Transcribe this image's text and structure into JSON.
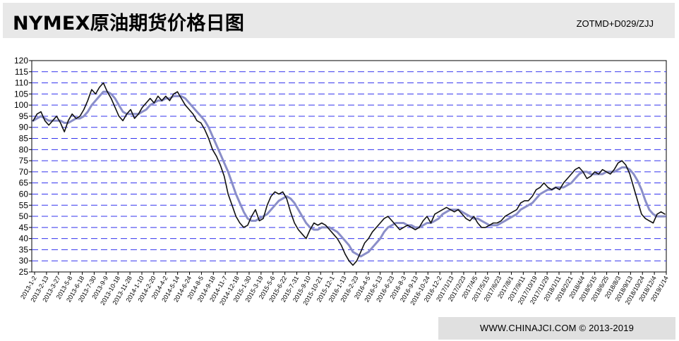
{
  "header": {
    "title": "NYMEX原油期货价格日图",
    "code": "ZOTMD+D029/ZJJ"
  },
  "footer": {
    "copyright": "WWW.CHINAJCI.COM © 2013-2019"
  },
  "colors": {
    "grid": "#3333ee",
    "price_line": "#111111",
    "ma_line": "#8a8ec8",
    "header_bg": "#e8e8e8",
    "footer_bg": "#e0e0e0"
  },
  "chart_data": {
    "type": "line",
    "title": "NYMEX原油期货价格日图",
    "xlabel": "",
    "ylabel": "",
    "ylim": [
      25,
      120
    ],
    "y_ticks": [
      25,
      30,
      35,
      40,
      45,
      50,
      55,
      60,
      65,
      70,
      75,
      80,
      85,
      90,
      95,
      100,
      105,
      110,
      115,
      120
    ],
    "grid": "horizontal dashed",
    "legend": "none",
    "x_tick_labels": [
      "2013-1-2",
      "2013-2-13",
      "2013-3-27",
      "2013-5-8",
      "2013-6-18",
      "2013-7-30",
      "2013-9-9",
      "2013-10-18",
      "2013-11-28",
      "2014-1-10",
      "2014-2-20",
      "2014-4-2",
      "2014-5-14",
      "2014-6-24",
      "2014-8-5",
      "2014-9-18",
      "2014-11-7",
      "2014-12-18",
      "2015-1-30",
      "2015-3-19",
      "2015-5-6",
      "2015-6-22",
      "2015-7-31",
      "2015-9-10",
      "2015-10-21",
      "2015-12-1",
      "2016-1-13",
      "2016-2-23",
      "2016-4-5",
      "2016-5-13",
      "2016-6-23",
      "2016-8-3",
      "2016-9-13",
      "2016-10-24",
      "2016-12-2",
      "2017/1/13",
      "2017/2/23",
      "2017/4/5",
      "2017/5/15",
      "2017/6/23",
      "2017/8/1",
      "2017/9/11",
      "2017/10/19",
      "2017/11/29",
      "2018/1/11",
      "2018/2/21",
      "2018/4/4",
      "2018/5/15",
      "2018/6/25",
      "2018/8/3",
      "2018/9/13",
      "2018/10/24",
      "2018/12/4",
      "2019/1/14"
    ],
    "series": [
      {
        "values": [
          93,
          96,
          97,
          93,
          91,
          93,
          95,
          92,
          88,
          93,
          96,
          94,
          95,
          98,
          102,
          107,
          105,
          108,
          110,
          106,
          103,
          99,
          95,
          93,
          96,
          98,
          94,
          96,
          99,
          101,
          103,
          101,
          104,
          102,
          104,
          102,
          105,
          106,
          103,
          100,
          98,
          96,
          93,
          92,
          89,
          85,
          80,
          77,
          73,
          68,
          60,
          55,
          50,
          47,
          45,
          46,
          50,
          53,
          48,
          49,
          55,
          59,
          61,
          60,
          61,
          58,
          52,
          47,
          44,
          42,
          40,
          44,
          47,
          46,
          47,
          46,
          44,
          42,
          40,
          37,
          33,
          30,
          28,
          30,
          34,
          38,
          40,
          43,
          45,
          47,
          49,
          50,
          48,
          46,
          44,
          45,
          46,
          45,
          44,
          45,
          48,
          50,
          47,
          51,
          52,
          53,
          54,
          53,
          52,
          53,
          51,
          49,
          48,
          50,
          47,
          45,
          45,
          46,
          47,
          47,
          48,
          50,
          51,
          52,
          53,
          56,
          57,
          57,
          59,
          62,
          63,
          65,
          63,
          62,
          63,
          62,
          65,
          67,
          69,
          71,
          72,
          70,
          67,
          68,
          70,
          69,
          71,
          70,
          69,
          71,
          74,
          75,
          73,
          69,
          63,
          57,
          51,
          49,
          48,
          47,
          51,
          52,
          51
        ],
        "ma": [
          93,
          94,
          95,
          94,
          93,
          93,
          93,
          93,
          92,
          92,
          93,
          94,
          94,
          95,
          97,
          100,
          102,
          104,
          106,
          106,
          105,
          103,
          100,
          97,
          96,
          96,
          96,
          96,
          97,
          98,
          100,
          101,
          102,
          102,
          103,
          103,
          104,
          104,
          104,
          103,
          101,
          99,
          97,
          95,
          93,
          90,
          86,
          82,
          78,
          74,
          70,
          65,
          60,
          56,
          52,
          49,
          48,
          48,
          49,
          50,
          51,
          53,
          55,
          57,
          58,
          59,
          58,
          56,
          53,
          50,
          47,
          45,
          44,
          44,
          45,
          45,
          45,
          44,
          43,
          41,
          39,
          37,
          34,
          33,
          32,
          33,
          34,
          36,
          38,
          40,
          43,
          45,
          46,
          47,
          47,
          47,
          46,
          46,
          45,
          45,
          46,
          47,
          47,
          48,
          49,
          51,
          52,
          53,
          53,
          53,
          52,
          51,
          50,
          49,
          49,
          48,
          47,
          46,
          46,
          46,
          47,
          48,
          49,
          50,
          51,
          53,
          54,
          55,
          56,
          58,
          60,
          61,
          62,
          62,
          63,
          63,
          63,
          64,
          65,
          67,
          69,
          70,
          70,
          69,
          69,
          69,
          69,
          70,
          70,
          70,
          71,
          72,
          72,
          71,
          69,
          66,
          62,
          57,
          53,
          51,
          50,
          50,
          50
        ]
      }
    ]
  }
}
